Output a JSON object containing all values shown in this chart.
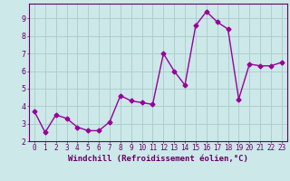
{
  "x": [
    0,
    1,
    2,
    3,
    4,
    5,
    6,
    7,
    8,
    9,
    10,
    11,
    12,
    13,
    14,
    15,
    16,
    17,
    18,
    19,
    20,
    21,
    22,
    23
  ],
  "y": [
    3.7,
    2.5,
    3.5,
    3.3,
    2.8,
    2.6,
    2.6,
    3.1,
    4.6,
    4.3,
    4.2,
    4.1,
    7.0,
    6.0,
    5.2,
    8.6,
    9.4,
    8.8,
    8.4,
    4.4,
    6.4,
    6.3,
    6.3,
    6.5
  ],
  "line_color": "#990099",
  "marker": "D",
  "markersize": 2.5,
  "linewidth": 1.0,
  "bg_color": "#cce8e8",
  "grid_color": "#aacccc",
  "xlabel": "Windchill (Refroidissement éolien,°C)",
  "xlabel_fontsize": 6.5,
  "tick_label_fontsize": 6,
  "ylabel_ticks": [
    2,
    3,
    4,
    5,
    6,
    7,
    8,
    9
  ],
  "xlim": [
    -0.5,
    23.5
  ],
  "ylim": [
    2.0,
    9.85
  ],
  "xticks": [
    0,
    1,
    2,
    3,
    4,
    5,
    6,
    7,
    8,
    9,
    10,
    11,
    12,
    13,
    14,
    15,
    16,
    17,
    18,
    19,
    20,
    21,
    22,
    23
  ],
  "axis_color": "#660066",
  "tick_color": "#660066",
  "label_color": "#660066"
}
